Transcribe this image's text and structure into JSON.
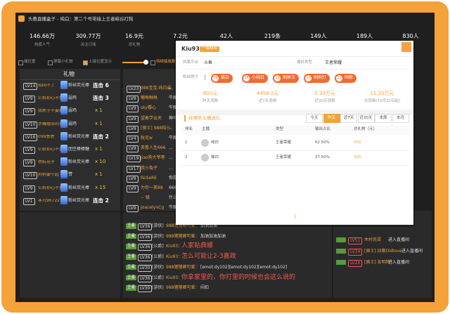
{
  "window": {
    "title": "头教直播盒子 - 纯白：第二个号带接上王者峡谷打狗"
  },
  "stats": [
    {
      "value": "146.66万",
      "label": "热度人气"
    },
    {
      "value": "309.77万",
      "label": "关注订阅"
    },
    {
      "value": "16.9元",
      "label": "总礼物"
    },
    {
      "value": "7.2元"
    },
    {
      "value": "42人"
    },
    {
      "value": "219条"
    },
    {
      "value": "149人"
    },
    {
      "value": "189人"
    },
    {
      "value": "830人"
    }
  ],
  "toolbar": [
    "端位置",
    "屏幕小礼物",
    "上接位置显示",
    "持续接收数"
  ],
  "gifts": {
    "title": "礼物",
    "rows": [
      {
        "level": "LV14",
        "user": "知回不了",
        "gift": "粉丝荧光棒",
        "count": "连击 6"
      },
      {
        "level": "LV9",
        "user": "亿权初心不负",
        "gift": "弱鸡",
        "count": "连击 3"
      },
      {
        "level": "LV9",
        "user": "我新于不要玩撸",
        "gift": "弱鸡",
        "count": "x 1"
      },
      {
        "level": "LV10",
        "user": "手機帽带的51046",
        "gift": "弱鸡",
        "count": "x 1"
      },
      {
        "level": "LV16",
        "user": "099恩虎",
        "gift": "粉丝荧光棒",
        "count": "连击 2"
      },
      {
        "level": "LV9",
        "user": "亿权初心不负",
        "gift": "团空棒棒糖",
        "count": "x 1"
      },
      {
        "level": "LV9",
        "user": "杨杭花子",
        "gift": "粉丝荧光棒",
        "count": "x 10"
      },
      {
        "level": "LV10",
        "user": "狗狗要牛起",
        "gift": "赞",
        "count": "x 1"
      },
      {
        "level": "LV9",
        "user": "亿权初心不负",
        "gift": "粉丝荧光棒",
        "count": "x 15"
      },
      {
        "level": "LV1",
        "user": "非凡96722",
        "gift": "粉丝荧光棒",
        "count": "连击 2"
      }
    ]
  },
  "chat_top": [
    {
      "level": "LV23",
      "user": "988宝宝-纯白最",
      "text": "..."
    },
    {
      "level": "LV9",
      "user": "嘟咻咻咻",
      "text": "牛魔"
    },
    {
      "level": "LV9",
      "user": "sky樱心",
      "text": "牛魔打"
    },
    {
      "level": "LV9",
      "user": "望着学云天",
      "text": "神马"
    },
    {
      "level": "LV9",
      "user": "[骑士] 988纯小",
      "text": "..."
    },
    {
      "level": "LV4",
      "user": "秋见w",
      "text": "牛魔打狗"
    },
    {
      "level": "LV9",
      "user": "笑看人生666",
      "text": "..."
    },
    {
      "level": "LV19",
      "user": "jiao狗大爷等",
      "text": "..."
    },
    {
      "level": "LV17",
      "user": "我小兔子",
      "text": "..."
    },
    {
      "level": "LV9",
      "user": "RoSeRE",
      "text": "你是什"
    },
    {
      "level": "LV9",
      "user": "为你一笑88",
      "text": "666"
    },
    {
      "user": "~ 骑",
      "text": "什么肝文"
    },
    {
      "level": "LV9",
      "user": "JoacelynCg",
      "text": "牛魔打"
    }
  ],
  "chat_bottom": [
    {
      "badge": "王者",
      "level": "LV36",
      "role": "[游侠]",
      "user": "988猪猪卿可爱：",
      "text": "加油加油"
    },
    {
      "badge": "王者",
      "level": "LV36",
      "role": "[游侠]",
      "user": "988猪猪卿可爱：",
      "text": "加油加油加油"
    },
    {
      "badge": "王者",
      "level": "LV36",
      "role": "[公爵]",
      "user": "Kiu93：",
      "text": "人家粘典娜"
    },
    {
      "badge": "王者",
      "level": "LV36",
      "role": "[公爵]",
      "user": "Kiu93：",
      "text": "怎么可能让2-3嘉政"
    },
    {
      "badge": "王者",
      "level": "LV30",
      "role": "[游侠]",
      "user": "988猪猪卿可爱：",
      "text": "[emot:dy102][emot:dy102][emot:dy102]"
    },
    {
      "badge": "王者",
      "level": "LV36",
      "role": "[公爵]",
      "user": "Kiu93：",
      "text": "你拿家里的，你打里的时候也会这么说的"
    },
    {
      "badge": "王者",
      "level": "LV30",
      "role": "[游侠]",
      "user": "988猪猪卿可爱：",
      "text": "闷扣"
    }
  ],
  "enter_log": [
    {
      "text": "进入直播间"
    },
    {
      "level": "LV51",
      "user": "木村兆梁",
      "text": "进入直播间"
    },
    {
      "level": "LV34",
      "user": "[骑士] 旧都Oldlove",
      "text": "进入直播间"
    },
    {
      "level": "LV26",
      "user": "[骑士] 安明特",
      "text": "进入直播间"
    }
  ],
  "popup": {
    "user": "Kiu93",
    "badge": "一级粉丝",
    "platform_label": "所属平台",
    "platform": "斗鱼",
    "type_label": "偏好类型",
    "type": "王者荣耀",
    "medals_label": "粉丝牌子",
    "medals": [
      {
        "level": "29",
        "name": "猫白"
      },
      {
        "level": "14",
        "name": "小纯白"
      },
      {
        "level": "15",
        "name": "刷屏王"
      },
      {
        "level": "13",
        "name": "刷刷打"
      },
      {
        "level": "11",
        "name": "固粉"
      }
    ],
    "spend": [
      {
        "value": "800元",
        "label": "昨天消费"
      },
      {
        "value": "4458.2元",
        "label": "近7天消费"
      },
      {
        "value": "2.33万元",
        "label": "近30天消费"
      },
      {
        "value": "11.20万元",
        "label": "总消费(10月22日起)"
      }
    ],
    "section": "给哪些主播送礼",
    "tabs": [
      "今天",
      "昨天",
      "近7天",
      "近30天",
      "本周",
      "本月"
    ],
    "table": {
      "header": [
        "排名",
        "主播",
        "类型",
        "输出占比",
        "总礼物（元）"
      ],
      "rows": [
        [
          "1",
          "纯白",
          "王者荣耀",
          "62.50%",
          "500"
        ],
        [
          "2",
          "猫白",
          "王者荣耀",
          "37.50%",
          "300"
        ]
      ]
    },
    "page": "1"
  }
}
